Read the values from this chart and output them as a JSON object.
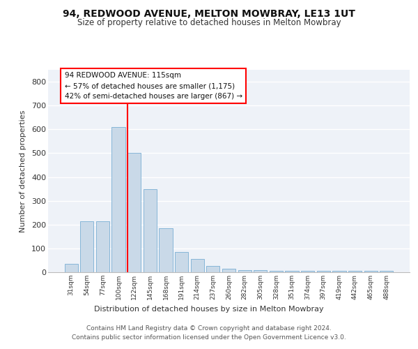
{
  "title1": "94, REDWOOD AVENUE, MELTON MOWBRAY, LE13 1UT",
  "title2": "Size of property relative to detached houses in Melton Mowbray",
  "xlabel": "Distribution of detached houses by size in Melton Mowbray",
  "ylabel": "Number of detached properties",
  "bar_values": [
    35,
    215,
    215,
    610,
    500,
    350,
    185,
    85,
    55,
    25,
    15,
    10,
    8,
    6,
    5,
    5,
    5,
    5,
    5,
    5,
    5
  ],
  "categories": [
    "31sqm",
    "54sqm",
    "77sqm",
    "100sqm",
    "122sqm",
    "145sqm",
    "168sqm",
    "191sqm",
    "214sqm",
    "237sqm",
    "260sqm",
    "282sqm",
    "305sqm",
    "328sqm",
    "351sqm",
    "374sqm",
    "397sqm",
    "419sqm",
    "442sqm",
    "465sqm",
    "488sqm"
  ],
  "bar_color": "#c9d9e8",
  "bar_edge_color": "#7aafd4",
  "vline_color": "red",
  "annotation_lines": [
    "94 REDWOOD AVENUE: 115sqm",
    "← 57% of detached houses are smaller (1,175)",
    "42% of semi-detached houses are larger (867) →"
  ],
  "footer": "Contains HM Land Registry data © Crown copyright and database right 2024.\nContains public sector information licensed under the Open Government Licence v3.0.",
  "ylim": [
    0,
    850
  ],
  "yticks": [
    0,
    100,
    200,
    300,
    400,
    500,
    600,
    700,
    800
  ],
  "bg_color": "#eef2f8",
  "grid_color": "white"
}
